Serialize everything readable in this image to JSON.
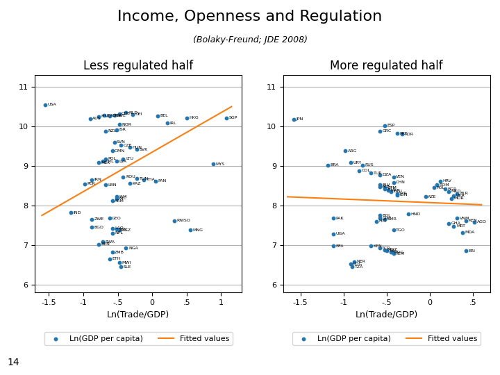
{
  "title": "Income, Openness and Regulation",
  "subtitle": "(Bolaky-Freund; JDE 2008)",
  "annotations": [
    "14"
  ],
  "chart_data": [
    {
      "type": "scatter",
      "title": "Less regulated half",
      "xlabel": "Ln(Trade/GDP)",
      "xlim": [
        -1.7,
        1.3
      ],
      "ylim": [
        5.8,
        11.3
      ],
      "xticks": [
        -1.5,
        {
          "value": -1.0,
          "label": "-1"
        },
        {
          "value": -0.5,
          "label": "-.5"
        },
        {
          "value": 0.0,
          "label": "0"
        },
        {
          "value": 0.5,
          "label": ".5"
        },
        {
          "value": 1.0,
          "label": "1"
        }
      ],
      "yticks": [
        6,
        7,
        8,
        9,
        10,
        11
      ],
      "grid": "y",
      "legend": "lower center",
      "series": [
        {
          "name": "Ln(GDP per capita)",
          "type": "scatter",
          "x": [
            -1.55,
            -0.9,
            -0.78,
            -0.7,
            -0.62,
            -0.55,
            -0.48,
            -0.38,
            -0.28,
            0.08,
            0.5,
            1.08,
            0.22,
            -0.48,
            -0.52,
            -0.68,
            -0.55,
            -0.45,
            -0.32,
            -0.22,
            -0.58,
            -0.68,
            -0.72,
            -0.78,
            -0.52,
            -0.42,
            0.88,
            -0.88,
            -0.98,
            -0.68,
            -0.42,
            -0.22,
            -0.12,
            0.05,
            -0.32,
            -0.52,
            -0.52,
            -0.58,
            -1.18,
            -0.88,
            -0.62,
            0.32,
            -0.88,
            -0.58,
            -0.52,
            -0.48,
            0.55,
            -0.72,
            -0.78,
            -0.38,
            -0.58,
            -0.62,
            -0.48,
            -0.45,
            -0.58
          ],
          "values": [
            10.55,
            10.2,
            10.25,
            10.28,
            10.27,
            10.28,
            10.32,
            10.35,
            10.3,
            10.27,
            10.22,
            10.22,
            10.08,
            10.05,
            9.92,
            9.88,
            9.6,
            9.52,
            9.47,
            9.42,
            9.38,
            9.18,
            9.12,
            9.08,
            9.12,
            9.18,
            9.05,
            8.65,
            8.55,
            8.52,
            8.72,
            8.68,
            8.65,
            8.62,
            8.56,
            8.22,
            8.18,
            8.12,
            7.82,
            7.65,
            7.68,
            7.62,
            7.45,
            7.42,
            7.4,
            7.38,
            7.38,
            7.08,
            7.02,
            6.92,
            6.82,
            6.65,
            6.55,
            6.45,
            7.3
          ],
          "labels": [
            "USA",
            "AUS",
            "FIN",
            "ITA",
            "DNK",
            "SWE",
            "CHE",
            "NLD",
            "DEI",
            "BEL",
            "HKG",
            "SGP",
            "IRL",
            "NOR",
            "ISR",
            "NZL",
            "SVN",
            "CZE",
            "HUN",
            "SVK",
            "OMN",
            "POL",
            "CHL",
            "MEX",
            "LVA",
            "LTU",
            "MYS",
            "IRN",
            "PER",
            "LBN",
            "ROU",
            "TUN",
            "THA",
            "PAN",
            "KAZ",
            "JAM",
            "NIC",
            "ARM",
            "IND",
            "ZWE",
            "GEO",
            "RNISO",
            "BGD",
            "LAO",
            "SEN",
            "KGZ",
            "MNG",
            "RWA",
            "BEN",
            "NGA",
            "ZMB",
            "ETH",
            "MWI",
            "SLE",
            "NPL"
          ]
        },
        {
          "name": "Fitted values",
          "type": "line",
          "x": [
            -1.6,
            1.15
          ],
          "values": [
            7.75,
            10.5
          ]
        }
      ]
    },
    {
      "type": "scatter",
      "title": "More regulated half",
      "xlabel": "Ln(Trade/GDP)",
      "xlim": [
        -1.7,
        0.7
      ],
      "ylim": [
        5.8,
        11.3
      ],
      "xticks": [
        -1.5,
        {
          "value": -1.0,
          "label": "-1"
        },
        {
          "value": -0.5,
          "label": "-.5"
        },
        {
          "value": 0.0,
          "label": "0"
        },
        {
          "value": 0.5,
          "label": ".5"
        }
      ],
      "yticks": [
        6,
        7,
        8,
        9,
        10,
        11
      ],
      "grid": "y",
      "legend": "lower center",
      "series": [
        {
          "name": "Ln(GDP per capita)",
          "type": "scatter",
          "x": [
            -1.58,
            -0.52,
            -0.58,
            -0.38,
            -0.32,
            -0.98,
            -1.18,
            -0.92,
            -0.78,
            -0.82,
            -0.68,
            -0.58,
            -0.42,
            -0.42,
            -0.58,
            -0.58,
            -0.52,
            -0.52,
            -0.48,
            -0.45,
            -0.38,
            -0.38,
            -0.05,
            0.12,
            0.08,
            0.05,
            0.18,
            0.22,
            0.32,
            0.28,
            0.25,
            -0.58,
            -1.12,
            -0.58,
            -0.52,
            -0.62,
            0.32,
            0.42,
            0.52,
            0.22,
            0.28,
            -1.12,
            0.38,
            -0.42,
            -1.12,
            -0.68,
            -0.58,
            -0.52,
            -0.5,
            -0.45,
            -0.42,
            0.42,
            -0.88,
            -0.92,
            -0.9,
            -0.25
          ],
          "values": [
            10.18,
            10.02,
            9.88,
            9.82,
            9.8,
            9.38,
            9.02,
            9.08,
            9.02,
            8.88,
            8.82,
            8.78,
            8.72,
            8.58,
            8.52,
            8.48,
            8.45,
            8.42,
            8.38,
            8.35,
            8.3,
            8.27,
            8.22,
            8.62,
            8.52,
            8.45,
            8.42,
            8.35,
            8.3,
            8.25,
            8.18,
            7.75,
            7.68,
            7.68,
            7.65,
            7.6,
            7.68,
            7.62,
            7.58,
            7.55,
            7.48,
            7.28,
            7.32,
            7.38,
            6.98,
            6.98,
            6.92,
            6.88,
            6.85,
            6.82,
            6.78,
            6.85,
            6.58,
            6.52,
            6.45,
            7.78
          ],
          "labels": [
            "JPN",
            "ESP",
            "GRC",
            "PRT",
            "KOR",
            "ARG",
            "BRA",
            "URY",
            "RUS",
            "COL",
            "TUR",
            "DZA",
            "VEN",
            "CHN",
            "BLV",
            "ALB",
            "GTM",
            "EGY",
            "MAR",
            "ECU",
            "SYR",
            "IDN",
            "AZE",
            "HRV",
            "ROM",
            "POL",
            "BGR",
            "MKD",
            "BLR",
            "UKR",
            "MOR",
            "BOL",
            "PAK",
            "GIN",
            "CMR",
            "HTI",
            "VNM",
            "KEN",
            "AGO",
            "GHA",
            "MRT",
            "UGA",
            "MDA",
            "TGO",
            "BFA",
            "KEN",
            "TCD",
            "MOZ",
            "MLI",
            "MDG",
            "YEM",
            "ERI",
            "NER",
            "COG",
            "TZA",
            "HND"
          ]
        },
        {
          "name": "Fitted values",
          "type": "line",
          "x": [
            -1.65,
            0.6
          ],
          "values": [
            8.22,
            8.02
          ]
        }
      ]
    }
  ]
}
